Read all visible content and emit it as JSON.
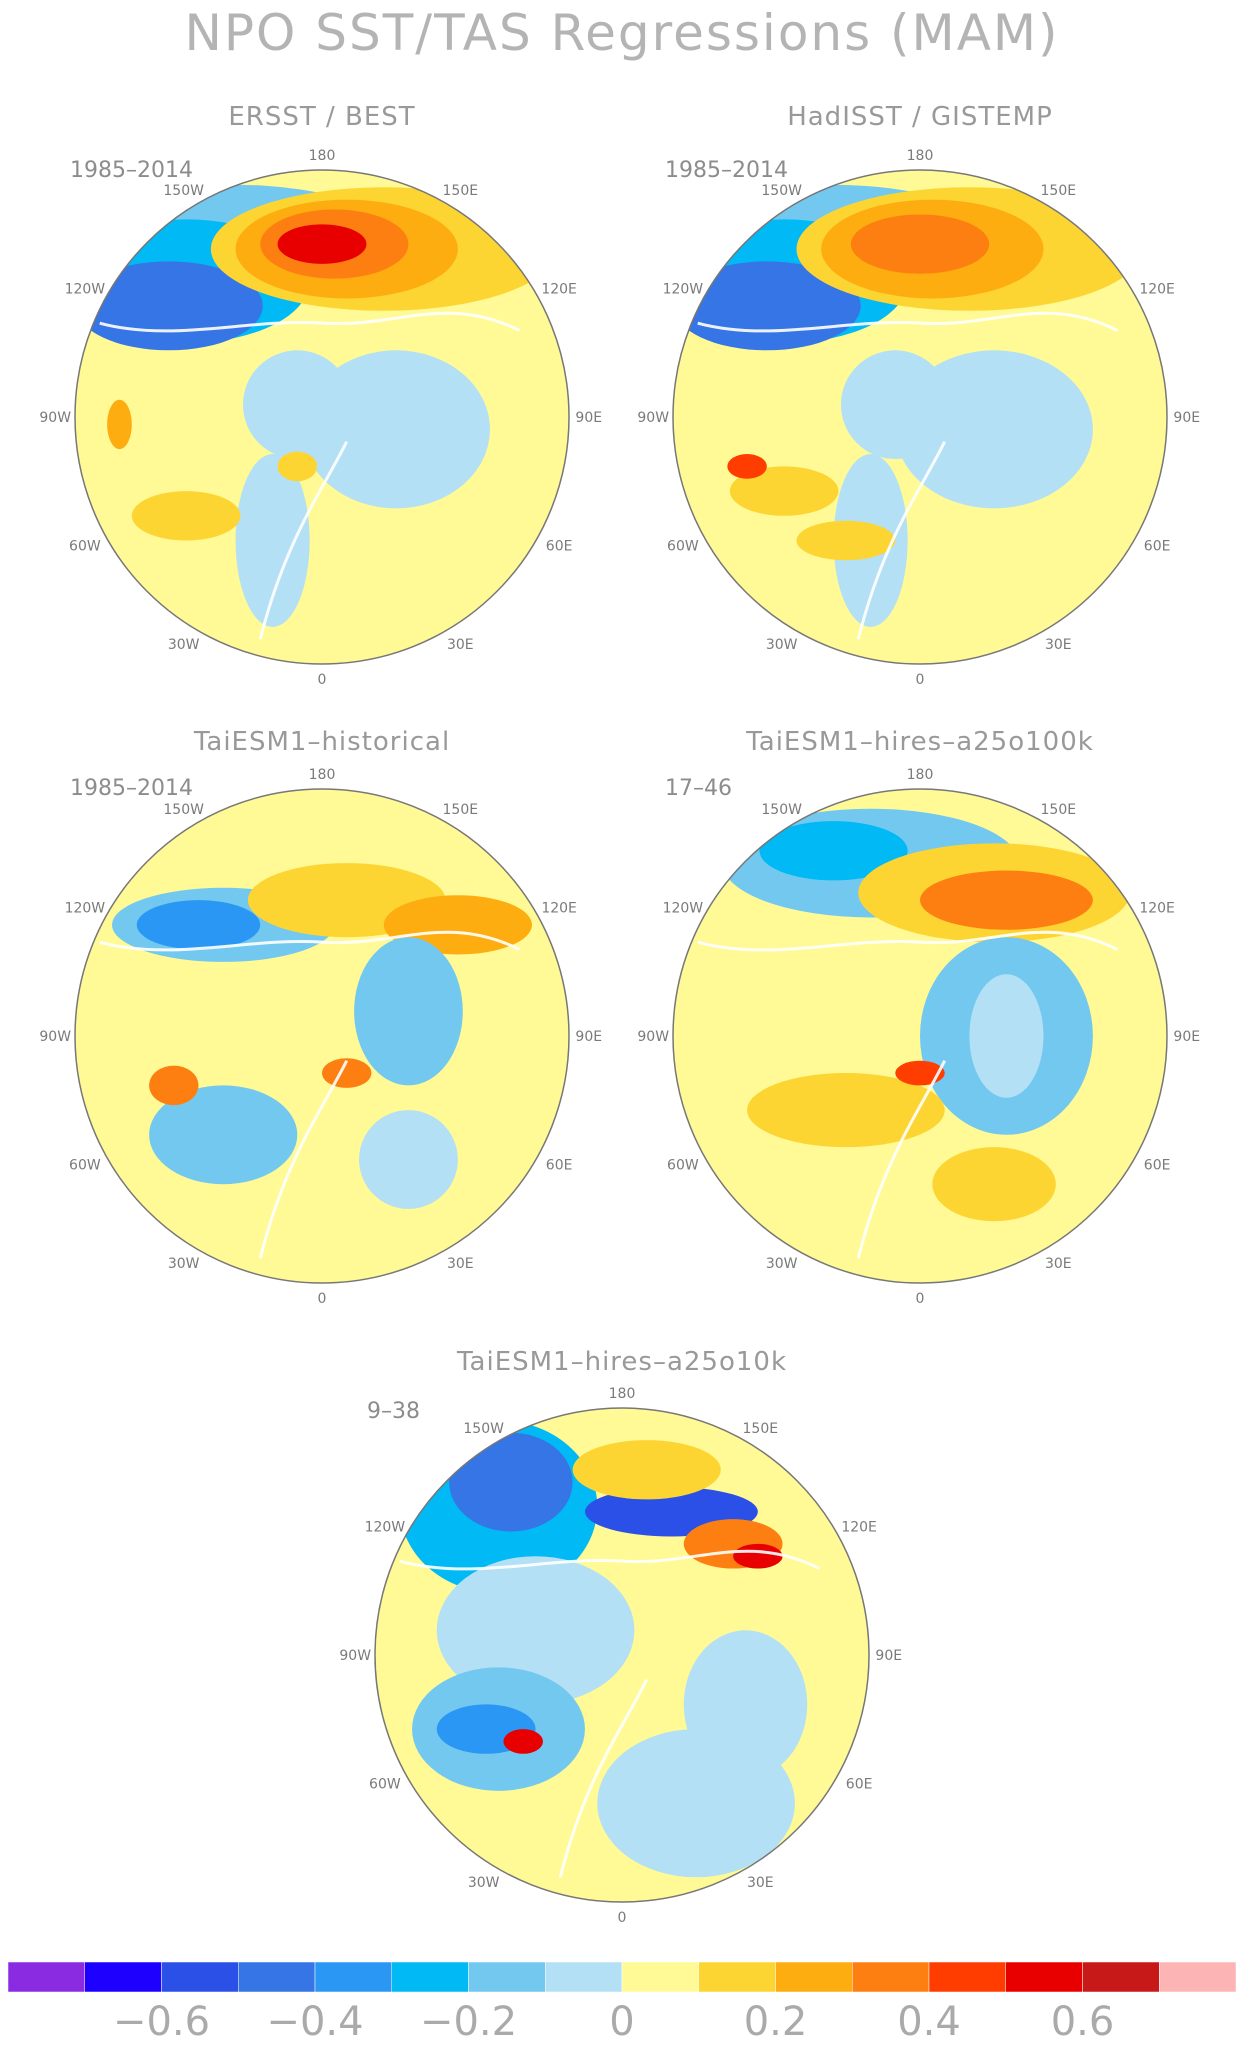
{
  "title": "NPO SST/TAS Regressions (MAM)",
  "panels": [
    {
      "title": "ERSST / BEST",
      "period": "1985–2014",
      "pattern": "obs1"
    },
    {
      "title": "HadISST / GISTEMP",
      "period": "1985–2014",
      "pattern": "obs2"
    },
    {
      "title": "TaiESM1–historical",
      "period": "1985–2014",
      "pattern": "hist"
    },
    {
      "title": "TaiESM1–hires–a25o100k",
      "period": "17–46",
      "pattern": "hires100"
    },
    {
      "title": "TaiESM1–hires–a25o10k",
      "period": "9–38",
      "pattern": "hires10"
    }
  ],
  "longitude_labels": [
    "180",
    "150E",
    "120E",
    "90E",
    "60E",
    "30E",
    "0",
    "30W",
    "60W",
    "90W",
    "120W",
    "150W"
  ],
  "colorbar": {
    "colors": [
      "#8a2be2",
      "#1e00ff",
      "#2a50e8",
      "#3575e6",
      "#2a97f5",
      "#00b9f5",
      "#73c8f0",
      "#b3e0f5",
      "#fffa96",
      "#fdd533",
      "#fdad0f",
      "#fd7f11",
      "#ff3d00",
      "#e80000",
      "#c81919",
      "#fdb4b4"
    ],
    "tick_labels": [
      "−0.6",
      "−0.4",
      "−0.2",
      "0",
      "0.2",
      "0.4",
      "0.6"
    ]
  }
}
